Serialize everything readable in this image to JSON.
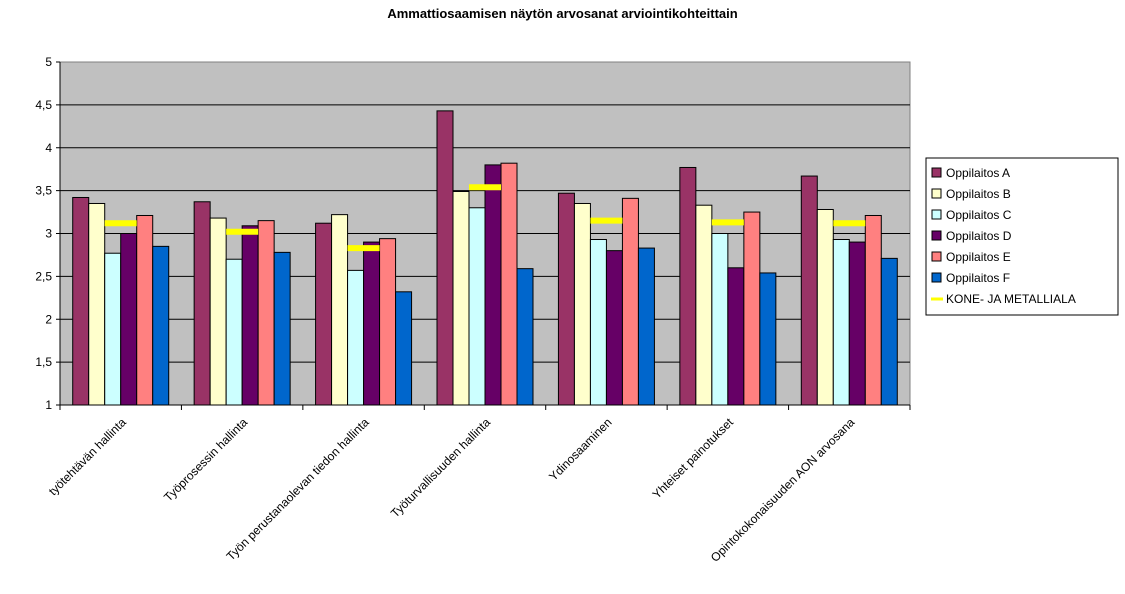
{
  "chart_data": {
    "type": "bar",
    "title": "Ammattiosaamisen näytön arvosanat arviointikohteittain",
    "xlabel": "",
    "ylabel": "",
    "ylim": [
      1,
      5
    ],
    "yticks": [
      "1",
      "1,5",
      "2",
      "2,5",
      "3",
      "3,5",
      "4",
      "4,5",
      "5"
    ],
    "ytick_values": [
      1,
      1.5,
      2,
      2.5,
      3,
      3.5,
      4,
      4.5,
      5
    ],
    "grid": true,
    "legend_position": "right",
    "plot_background": "#c0c0c0",
    "categories": [
      "työtehtävän hallinta",
      "Työprosessin hallinta",
      "Työn perustanaolevan tiedon hallinta",
      "Työturvallisuuden hallinta",
      "Ydinosaaminen",
      "Yhteiset painotukset",
      "Opintokokonaisuuden AON arvosana"
    ],
    "series": [
      {
        "name": "Oppilaitos A",
        "color": "#993366",
        "values": [
          3.42,
          3.37,
          3.12,
          4.43,
          3.47,
          3.77,
          3.67
        ]
      },
      {
        "name": "Oppilaitos B",
        "color": "#ffffcc",
        "values": [
          3.35,
          3.18,
          3.22,
          3.49,
          3.35,
          3.33,
          3.28
        ]
      },
      {
        "name": "Oppilaitos C",
        "color": "#ccffff",
        "values": [
          2.77,
          2.7,
          2.57,
          3.3,
          2.93,
          3.0,
          2.93
        ]
      },
      {
        "name": "Oppilaitos D",
        "color": "#660066",
        "values": [
          3.0,
          3.09,
          2.9,
          3.8,
          2.8,
          2.6,
          2.9
        ]
      },
      {
        "name": "Oppilaitos E",
        "color": "#ff8080",
        "values": [
          3.21,
          3.15,
          2.94,
          3.82,
          3.41,
          3.25,
          3.21
        ]
      },
      {
        "name": "Oppilaitos F",
        "color": "#0066cc",
        "values": [
          2.85,
          2.78,
          2.32,
          2.59,
          2.83,
          2.54,
          2.71
        ]
      }
    ],
    "reference_series": {
      "name": "KONE- JA METALLIALA",
      "color": "#ffff00",
      "values": [
        3.12,
        3.02,
        2.83,
        3.54,
        3.15,
        3.13,
        3.12
      ]
    }
  }
}
